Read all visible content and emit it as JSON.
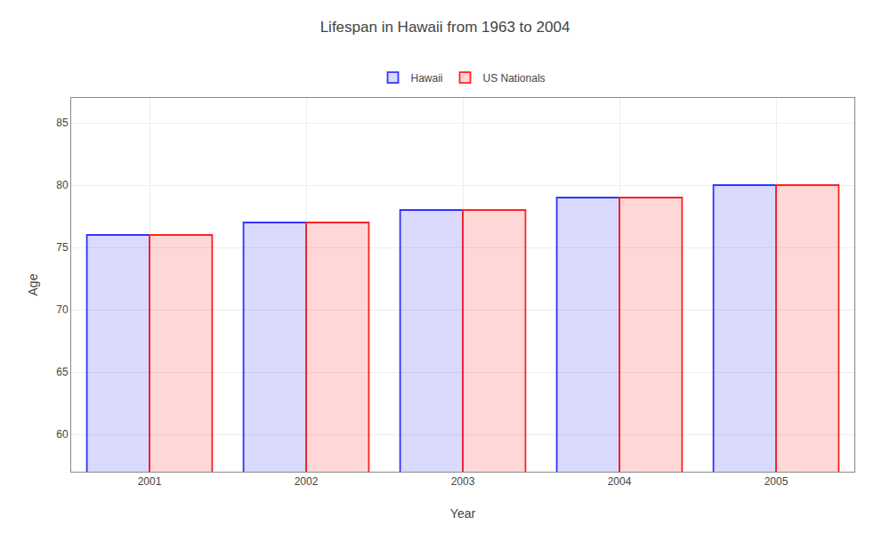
{
  "chart_data": {
    "type": "bar",
    "title": "Lifespan in Hawaii from 1963 to 2004",
    "x_label": "Year",
    "y_label": "Age",
    "categories": [
      "2001",
      "2002",
      "2003",
      "2004",
      "2005"
    ],
    "series": [
      {
        "name": "Hawaii",
        "color": "#3333ff",
        "values": [
          76,
          77,
          78,
          79,
          80
        ]
      },
      {
        "name": "US Nationals",
        "color": "#ff2222",
        "values": [
          76,
          77,
          78,
          79,
          80
        ]
      }
    ],
    "ylim": [
      57,
      87
    ],
    "yticks": [
      60,
      65,
      70,
      75,
      80,
      85
    ],
    "grid": true,
    "legend": "top"
  }
}
